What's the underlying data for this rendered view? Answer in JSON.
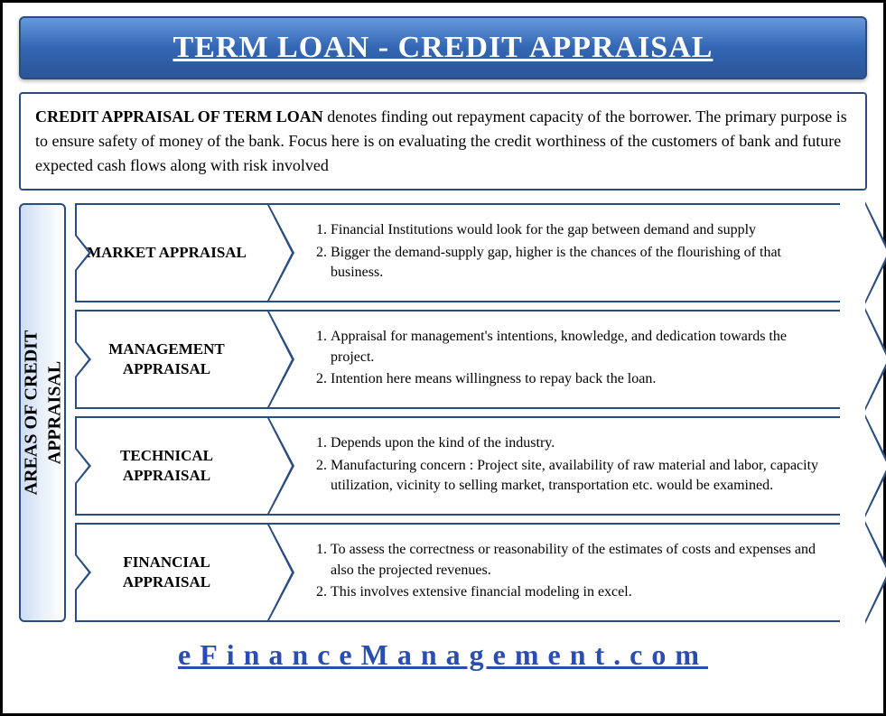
{
  "title": "TERM LOAN - CREDIT APPRAISAL",
  "intro_lead": "CREDIT APPRAISAL OF TERM LOAN",
  "intro_rest": " denotes finding out repayment capacity of the borrower. The primary purpose is to ensure safety of money of the bank. Focus here is on evaluating the credit worthiness of the customers of bank and future expected cash flows along with risk involved",
  "side_label": "AREAS OF CREDIT\nAPPRAISAL",
  "rows": [
    {
      "label": "MARKET APPRAISAL",
      "items": [
        "Financial Institutions would look for the gap between demand and supply",
        "Bigger the demand-supply gap, higher is the chances of the flourishing of that business."
      ]
    },
    {
      "label": "MANAGEMENT APPRAISAL",
      "items": [
        "Appraisal for management's intentions, knowledge, and dedication towards the project.",
        "Intention here means willingness to repay back the loan."
      ]
    },
    {
      "label": "TECHNICAL APPRAISAL",
      "items": [
        "Depends upon the kind of the industry.",
        "Manufacturing concern : Project site, availability of raw material and labor, capacity utilization, vicinity to selling market, transportation etc. would be examined."
      ]
    },
    {
      "label": "FINANCIAL APPRAISAL",
      "items": [
        "To assess the correctness or reasonability of the estimates of costs and expenses and also the projected revenues.",
        "This involves extensive financial modeling in excel."
      ]
    }
  ],
  "footer": "eFinanceManagement.com",
  "colors": {
    "border": "#2a4d80",
    "title_grad_top": "#6699dd",
    "title_grad_bottom": "#2a5599",
    "footer_color": "#2a4db3",
    "side_grad_start": "#cdddf2"
  }
}
